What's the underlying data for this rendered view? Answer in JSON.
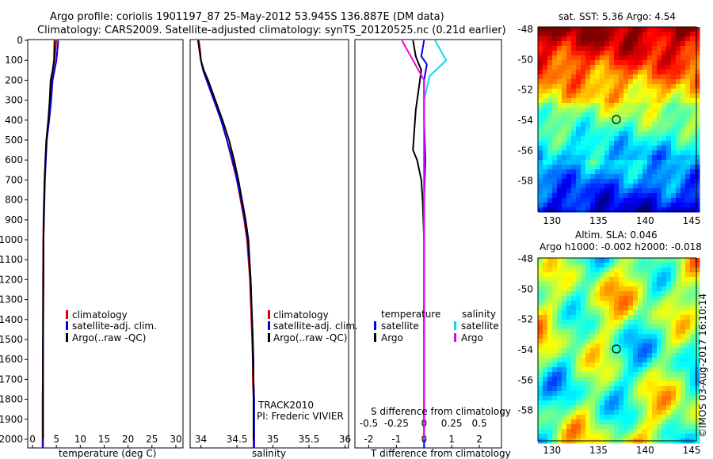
{
  "title_line1": "Argo profile: coriolis 1901197_87 25-May-2012 53.945S 136.887E (DM data)",
  "title_line2": "Climatology: CARS2009. Satellite-adjusted climatology: synTS_20120525.nc (0.21d earlier)",
  "depth_ticks": [
    "0",
    "100",
    "200",
    "300",
    "400",
    "500",
    "600",
    "700",
    "800",
    "900",
    "1000",
    "1100",
    "1200",
    "1300",
    "1400",
    "1500",
    "1600",
    "1700",
    "1800",
    "1900",
    "2000"
  ],
  "colors": {
    "climatology": "#dd0000",
    "satellite": "#0000ee",
    "argo": "#000000",
    "sal_satellite": "#00e0e8",
    "sal_argo": "#ee00ee"
  },
  "temp_panel": {
    "xlabel": "temperature (deg C)",
    "xticks": [
      "0",
      "5",
      "10",
      "15",
      "20",
      "25",
      "30"
    ],
    "legend": [
      "climatology",
      "satellite-adj. clim.",
      "Argo(..raw -QC)"
    ]
  },
  "sal_panel": {
    "xlabel": "salinity",
    "xticks": [
      "34",
      "34.5",
      "35",
      "35.5",
      "36"
    ],
    "legend": [
      "climatology",
      "satellite-adj. clim.",
      "Argo(..raw -QC)"
    ],
    "track": "TRACK2010",
    "pi": "PI: Frederic VIVIER"
  },
  "diff_panel": {
    "xlabel": "T difference from climatology",
    "xticks": [
      "-2",
      "-1",
      "0",
      "1",
      "2"
    ],
    "top_label": "S difference from climatology",
    "top_ticks": [
      "-0.5",
      "-0.25",
      "0",
      "0.25",
      "0.5"
    ],
    "legend_temp_head": "temperature",
    "legend_sal_head": "salinity",
    "legend_temp": [
      "satellite",
      "Argo"
    ],
    "legend_sal": [
      "satellite",
      "Argo"
    ]
  },
  "sst_map": {
    "title": "sat. SST: 5.36  Argo: 4.54",
    "yticks": [
      "-48",
      "-50",
      "-52",
      "-54",
      "-56",
      "-58"
    ],
    "xticks": [
      "130",
      "135",
      "140",
      "145"
    ]
  },
  "sla_map": {
    "title1": "Altim. SLA: 0.046",
    "title2": "Argo h1000: -0.002 h2000: -0.018",
    "yticks": [
      "-48",
      "-50",
      "-52",
      "-54",
      "-56",
      "-58"
    ],
    "xticks": [
      "130",
      "135",
      "140",
      "145"
    ]
  },
  "credit": "©IMOS 03-Aug-2017 16:10:14",
  "chart_data": [
    {
      "type": "line",
      "xlabel": "temperature (deg C)",
      "ylabel": "",
      "xlim": [
        -1,
        31.5
      ],
      "ylim": [
        2060,
        0
      ],
      "series": [
        {
          "name": "climatology",
          "x": [
            5.0,
            4.8,
            4.6,
            4.3,
            4.0,
            3.8,
            3.4,
            2.9,
            2.7,
            2.5,
            2.4,
            2.3,
            2.25,
            2.2,
            2.2,
            2.2,
            2.15,
            2.15,
            2.1,
            2.1,
            2.1
          ],
          "y": [
            0,
            50,
            100,
            150,
            200,
            300,
            400,
            500,
            600,
            700,
            800,
            900,
            1000,
            1200,
            1400,
            1500,
            1600,
            1700,
            1800,
            1900,
            2060
          ]
        },
        {
          "name": "satellite-adj. clim.",
          "x": [
            5.4,
            5.2,
            5.0,
            4.6,
            4.2,
            3.9,
            3.5,
            3.0,
            2.8,
            2.6,
            2.5,
            2.4,
            2.3,
            2.3,
            2.25,
            2.2,
            2.2,
            2.2,
            2.2,
            2.2,
            2.2
          ],
          "y": [
            0,
            50,
            100,
            150,
            200,
            300,
            400,
            500,
            600,
            700,
            800,
            900,
            1000,
            1200,
            1400,
            1500,
            1600,
            1700,
            1800,
            1900,
            2060
          ]
        },
        {
          "name": "Argo(..raw -QC)",
          "x": [
            4.6,
            4.55,
            4.5,
            4.2,
            3.8,
            3.6,
            3.3,
            2.9,
            2.7,
            2.55,
            2.45,
            2.35,
            2.3,
            2.25,
            2.2,
            2.2,
            2.2,
            2.2,
            2.2,
            2.2
          ],
          "y": [
            0,
            50,
            100,
            150,
            200,
            300,
            400,
            500,
            600,
            700,
            800,
            900,
            1000,
            1200,
            1400,
            1500,
            1600,
            1700,
            1800,
            2000
          ]
        }
      ]
    },
    {
      "type": "line",
      "xlabel": "salinity",
      "ylabel": "",
      "xlim": [
        33.85,
        36.05
      ],
      "ylim": [
        2060,
        0
      ],
      "series": [
        {
          "name": "climatology",
          "x": [
            33.97,
            33.99,
            34.0,
            34.03,
            34.08,
            34.18,
            34.28,
            34.36,
            34.43,
            34.5,
            34.55,
            34.6,
            34.64,
            34.68,
            34.7,
            34.71,
            34.72,
            34.72,
            34.73,
            34.73,
            34.73
          ],
          "y": [
            0,
            50,
            100,
            150,
            200,
            300,
            400,
            500,
            600,
            700,
            800,
            900,
            1000,
            1200,
            1400,
            1500,
            1600,
            1700,
            1800,
            1900,
            2060
          ]
        },
        {
          "name": "satellite-adj. clim.",
          "x": [
            33.96,
            33.98,
            34.0,
            34.03,
            34.08,
            34.18,
            34.28,
            34.36,
            34.44,
            34.5,
            34.56,
            34.61,
            34.65,
            34.69,
            34.71,
            34.72,
            34.73,
            34.73,
            34.74,
            34.74,
            34.74
          ],
          "y": [
            0,
            50,
            100,
            150,
            200,
            300,
            400,
            500,
            600,
            700,
            800,
            900,
            1000,
            1200,
            1400,
            1500,
            1600,
            1700,
            1800,
            1900,
            2060
          ]
        },
        {
          "name": "Argo(..raw -QC)",
          "x": [
            33.96,
            33.98,
            34.0,
            34.04,
            34.1,
            34.2,
            34.3,
            34.39,
            34.46,
            34.52,
            34.57,
            34.62,
            34.66,
            34.69,
            34.71,
            34.72,
            34.72,
            34.73,
            34.73,
            34.73
          ],
          "y": [
            0,
            50,
            100,
            150,
            200,
            300,
            400,
            500,
            600,
            700,
            800,
            900,
            1000,
            1200,
            1400,
            1500,
            1600,
            1700,
            1800,
            2000
          ]
        }
      ]
    },
    {
      "type": "line",
      "xlabel": "T difference from climatology",
      "ylabel": "",
      "xlim": [
        -2.5,
        2.8
      ],
      "ylim": [
        2060,
        0
      ],
      "series": [
        {
          "name": "temperature satellite",
          "x": [
            0.0,
            -0.1,
            0.1,
            0.0,
            0.0,
            0.05,
            0.0,
            0.0,
            0.0,
            0.0,
            0.0,
            0.0
          ],
          "y": [
            0,
            80,
            120,
            200,
            400,
            600,
            800,
            1000,
            1200,
            1500,
            1800,
            2060
          ]
        },
        {
          "name": "temperature Argo",
          "x": [
            -0.4,
            -0.3,
            -0.1,
            -0.2,
            -0.3,
            -0.35,
            -0.4,
            -0.25,
            -0.1,
            -0.05,
            0.0,
            0.0,
            0.0
          ],
          "y": [
            0,
            80,
            150,
            250,
            350,
            450,
            550,
            600,
            700,
            800,
            1000,
            1500,
            2000
          ]
        },
        {
          "name": "salinity satellite",
          "x": [
            0.1,
            0.2,
            0.05,
            0.0,
            0.0,
            0.0,
            0.0,
            0.0,
            0.0,
            0.0
          ],
          "y": [
            0,
            100,
            180,
            300,
            600,
            900,
            1000,
            1300,
            1700,
            2000
          ]
        },
        {
          "name": "salinity Argo",
          "x": [
            -0.2,
            -0.1,
            0.0,
            0.0,
            0.0,
            0.0,
            0.0,
            0.0,
            0.0
          ],
          "y": [
            0,
            100,
            200,
            400,
            700,
            1000,
            1300,
            1700,
            2000
          ]
        }
      ]
    },
    {
      "type": "heatmap",
      "title": "sat. SST: 5.36  Argo: 4.54",
      "xlim": [
        128.5,
        145.5
      ],
      "ylim": [
        -60,
        -48
      ],
      "marker": {
        "lon": 136.887,
        "lat": -53.945
      }
    },
    {
      "type": "heatmap",
      "title": "Altim. SLA: 0.046",
      "xlim": [
        128.5,
        145.5
      ],
      "ylim": [
        -60,
        -48
      ],
      "marker": {
        "lon": 136.887,
        "lat": -53.945
      }
    }
  ]
}
